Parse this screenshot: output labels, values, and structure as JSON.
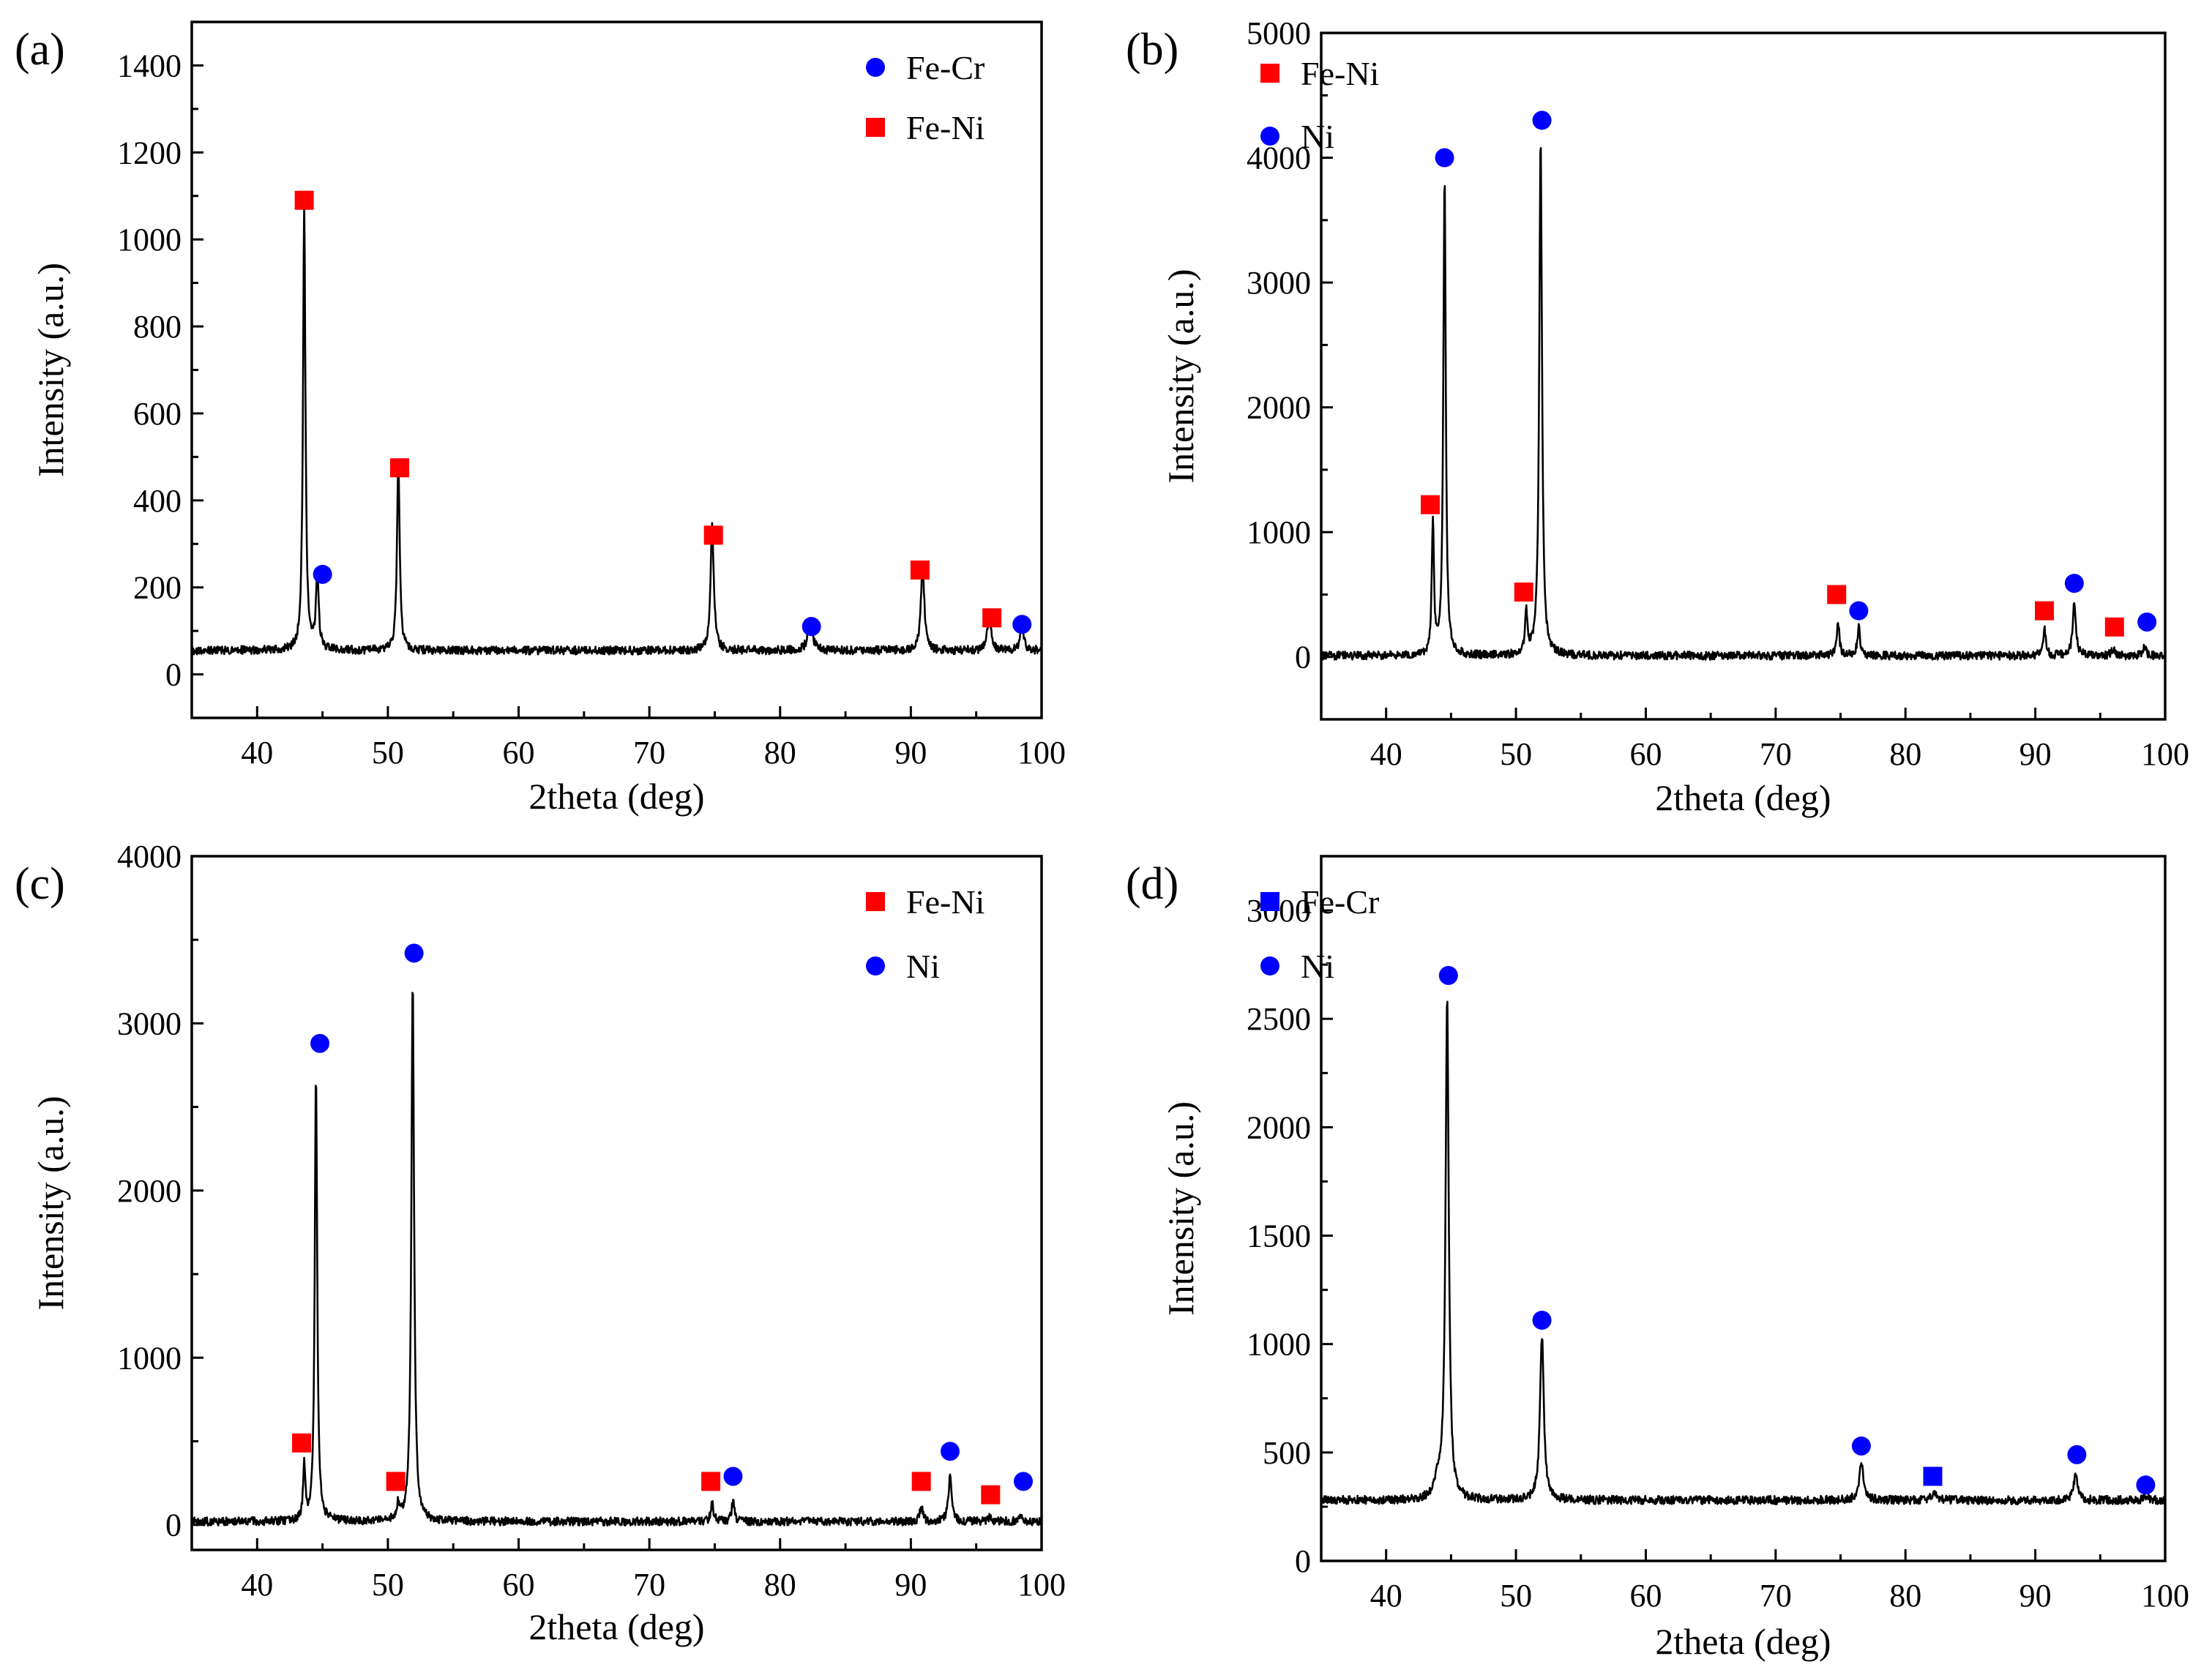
{
  "figure": {
    "x_axis_label": "2theta (deg)",
    "y_axis_label": "Intensity (a.u.)"
  },
  "colors": {
    "Fe-Cr": "#0000ff",
    "Fe-Ni": "#ff0000",
    "Ni": "#0000ff",
    "trace": "#000000"
  },
  "chart_data": [
    {
      "id": "a",
      "type": "line",
      "label": "(a)",
      "xlabel": "2theta (deg)",
      "ylabel": "Intensity (a.u.)",
      "xlim": [
        35,
        100
      ],
      "ylim": [
        -100,
        1500
      ],
      "xticks": [
        40,
        50,
        60,
        70,
        80,
        90,
        100
      ],
      "yticks": [
        0,
        200,
        400,
        600,
        800,
        1000,
        1200,
        1400
      ],
      "baseline": 55,
      "peaks": [
        {
          "x": 43.6,
          "y": 1030,
          "w": 0.22
        },
        {
          "x": 44.6,
          "y": 175,
          "w": 0.25
        },
        {
          "x": 50.8,
          "y": 430,
          "w": 0.25
        },
        {
          "x": 74.8,
          "y": 285,
          "w": 0.3
        },
        {
          "x": 82.3,
          "y": 72,
          "w": 0.4
        },
        {
          "x": 90.9,
          "y": 200,
          "w": 0.3
        },
        {
          "x": 96.0,
          "y": 95,
          "w": 0.3
        },
        {
          "x": 98.5,
          "y": 60,
          "w": 0.3
        }
      ],
      "legend": [
        {
          "phase": "Fe-Cr",
          "marker": "circle"
        },
        {
          "phase": "Fe-Ni",
          "marker": "square"
        }
      ],
      "markers": [
        {
          "phase": "Fe-Ni",
          "shape": "square",
          "x": 43.6,
          "y": 1090
        },
        {
          "phase": "Fe-Cr",
          "shape": "circle",
          "x": 45.0,
          "y": 230
        },
        {
          "phase": "Fe-Ni",
          "shape": "square",
          "x": 50.9,
          "y": 475
        },
        {
          "phase": "Fe-Ni",
          "shape": "square",
          "x": 74.9,
          "y": 320
        },
        {
          "phase": "Fe-Cr",
          "shape": "circle",
          "x": 82.4,
          "y": 110
        },
        {
          "phase": "Fe-Ni",
          "shape": "square",
          "x": 90.7,
          "y": 240
        },
        {
          "phase": "Fe-Ni",
          "shape": "square",
          "x": 96.2,
          "y": 130
        },
        {
          "phase": "Fe-Cr",
          "shape": "circle",
          "x": 98.5,
          "y": 115
        }
      ]
    },
    {
      "id": "b",
      "type": "line",
      "label": "(b)",
      "xlabel": "2theta (deg)",
      "ylabel": "Intensity (a.u.)",
      "xlim": [
        35,
        100
      ],
      "ylim": [
        -500,
        5000
      ],
      "xticks": [
        40,
        50,
        60,
        70,
        80,
        90,
        100
      ],
      "yticks": [
        0,
        1000,
        2000,
        3000,
        4000,
        5000
      ],
      "baseline": 10,
      "peaks": [
        {
          "x": 43.6,
          "y": 1050,
          "w": 0.2
        },
        {
          "x": 44.5,
          "y": 3850,
          "w": 0.22
        },
        {
          "x": 50.8,
          "y": 330,
          "w": 0.22
        },
        {
          "x": 51.9,
          "y": 4150,
          "w": 0.25
        },
        {
          "x": 74.8,
          "y": 270,
          "w": 0.25
        },
        {
          "x": 76.4,
          "y": 220,
          "w": 0.25
        },
        {
          "x": 90.7,
          "y": 210,
          "w": 0.25
        },
        {
          "x": 93.0,
          "y": 410,
          "w": 0.3
        },
        {
          "x": 96.0,
          "y": 60,
          "w": 0.3
        },
        {
          "x": 98.4,
          "y": 70,
          "w": 0.3
        }
      ],
      "legend": [
        {
          "phase": "Fe-Ni",
          "marker": "square"
        },
        {
          "phase": "Ni",
          "marker": "circle"
        }
      ],
      "markers": [
        {
          "phase": "Fe-Ni",
          "shape": "square",
          "x": 43.4,
          "y": 1220
        },
        {
          "phase": "Ni",
          "shape": "circle",
          "x": 44.5,
          "y": 4000
        },
        {
          "phase": "Fe-Ni",
          "shape": "square",
          "x": 50.6,
          "y": 520
        },
        {
          "phase": "Ni",
          "shape": "circle",
          "x": 52.0,
          "y": 4300
        },
        {
          "phase": "Fe-Ni",
          "shape": "square",
          "x": 74.7,
          "y": 500
        },
        {
          "phase": "Ni",
          "shape": "circle",
          "x": 76.4,
          "y": 370
        },
        {
          "phase": "Fe-Ni",
          "shape": "square",
          "x": 90.7,
          "y": 370
        },
        {
          "phase": "Ni",
          "shape": "circle",
          "x": 93.0,
          "y": 590
        },
        {
          "phase": "Fe-Ni",
          "shape": "square",
          "x": 96.1,
          "y": 240
        },
        {
          "phase": "Ni",
          "shape": "circle",
          "x": 98.6,
          "y": 280
        }
      ]
    },
    {
      "id": "c",
      "type": "line",
      "label": "(c)",
      "xlabel": "2theta (deg)",
      "ylabel": "Intensity (a.u.)",
      "xlim": [
        35,
        100
      ],
      "ylim": [
        -150,
        4000
      ],
      "xticks": [
        40,
        50,
        60,
        70,
        80,
        90,
        100
      ],
      "yticks": [
        0,
        1000,
        2000,
        3000,
        4000
      ],
      "baseline": 20,
      "peaks": [
        {
          "x": 43.6,
          "y": 330,
          "w": 0.2
        },
        {
          "x": 44.5,
          "y": 2700,
          "w": 0.22
        },
        {
          "x": 50.8,
          "y": 100,
          "w": 0.25
        },
        {
          "x": 51.9,
          "y": 3250,
          "w": 0.25
        },
        {
          "x": 74.8,
          "y": 110,
          "w": 0.25
        },
        {
          "x": 76.4,
          "y": 120,
          "w": 0.25
        },
        {
          "x": 90.8,
          "y": 90,
          "w": 0.25
        },
        {
          "x": 93.0,
          "y": 270,
          "w": 0.3
        },
        {
          "x": 96.0,
          "y": 20,
          "w": 0.3
        },
        {
          "x": 98.4,
          "y": 40,
          "w": 0.3
        }
      ],
      "legend": [
        {
          "phase": "Fe-Ni",
          "marker": "square"
        },
        {
          "phase": "Ni",
          "marker": "circle"
        }
      ],
      "markers": [
        {
          "phase": "Fe-Ni",
          "shape": "square",
          "x": 43.4,
          "y": 490
        },
        {
          "phase": "Ni",
          "shape": "circle",
          "x": 44.8,
          "y": 2880
        },
        {
          "phase": "Fe-Ni",
          "shape": "square",
          "x": 50.6,
          "y": 260
        },
        {
          "phase": "Ni",
          "shape": "circle",
          "x": 52.0,
          "y": 3420
        },
        {
          "phase": "Fe-Ni",
          "shape": "square",
          "x": 74.7,
          "y": 260
        },
        {
          "phase": "Ni",
          "shape": "circle",
          "x": 76.4,
          "y": 290
        },
        {
          "phase": "Fe-Ni",
          "shape": "square",
          "x": 90.8,
          "y": 260
        },
        {
          "phase": "Ni",
          "shape": "circle",
          "x": 93.0,
          "y": 440
        },
        {
          "phase": "Fe-Ni",
          "shape": "square",
          "x": 96.1,
          "y": 180
        },
        {
          "phase": "Ni",
          "shape": "circle",
          "x": 98.6,
          "y": 260
        }
      ]
    },
    {
      "id": "d",
      "type": "line",
      "label": "(d)",
      "xlabel": "2theta (deg)",
      "ylabel": "Intensity (a.u.)",
      "xlim": [
        35,
        100
      ],
      "ylim": [
        0,
        3250
      ],
      "xticks": [
        40,
        50,
        60,
        70,
        80,
        90,
        100
      ],
      "yticks": [
        0,
        500,
        1000,
        1500,
        2000,
        2500,
        3000
      ],
      "baseline": 280,
      "peaks": [
        {
          "x": 44.0,
          "y": 80,
          "w": 0.6
        },
        {
          "x": 44.7,
          "y": 2320,
          "w": 0.3
        },
        {
          "x": 52.0,
          "y": 760,
          "w": 0.35
        },
        {
          "x": 76.6,
          "y": 170,
          "w": 0.4
        },
        {
          "x": 82.2,
          "y": 30,
          "w": 0.5
        },
        {
          "x": 93.1,
          "y": 110,
          "w": 0.4
        },
        {
          "x": 98.5,
          "y": 20,
          "w": 0.4
        }
      ],
      "legend": [
        {
          "phase": "Fe-Cr",
          "marker": "square"
        },
        {
          "phase": "Ni",
          "marker": "circle"
        }
      ],
      "markers": [
        {
          "phase": "Ni",
          "shape": "circle",
          "x": 44.8,
          "y": 2700
        },
        {
          "phase": "Ni",
          "shape": "circle",
          "x": 52.0,
          "y": 1110
        },
        {
          "phase": "Ni",
          "shape": "circle",
          "x": 76.6,
          "y": 530
        },
        {
          "phase": "Fe-Cr",
          "shape": "square",
          "x": 82.1,
          "y": 390
        },
        {
          "phase": "Ni",
          "shape": "circle",
          "x": 93.2,
          "y": 490
        },
        {
          "phase": "Ni",
          "shape": "circle",
          "x": 98.5,
          "y": 350
        }
      ]
    }
  ]
}
